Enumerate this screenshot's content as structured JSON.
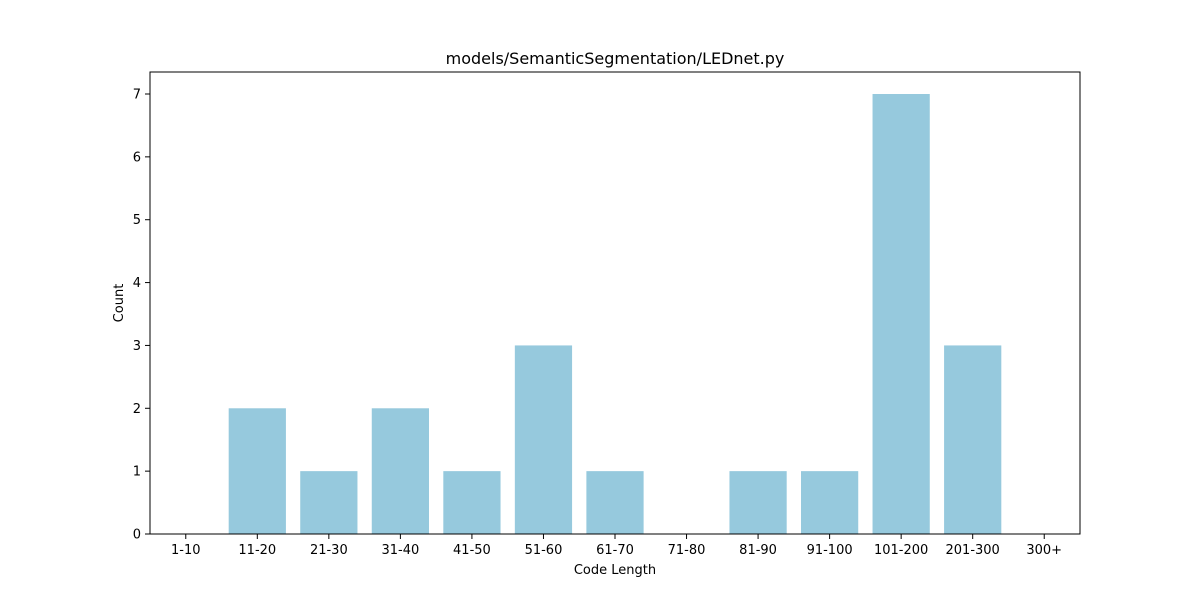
{
  "chart_data": {
    "type": "bar",
    "title": "models/SemanticSegmentation/LEDnet.py",
    "xlabel": "Code Length",
    "ylabel": "Count",
    "categories": [
      "1-10",
      "11-20",
      "21-30",
      "31-40",
      "41-50",
      "51-60",
      "61-70",
      "71-80",
      "81-90",
      "91-100",
      "101-200",
      "201-300",
      "300+"
    ],
    "values": [
      0,
      2,
      1,
      2,
      1,
      3,
      1,
      0,
      1,
      1,
      7,
      3,
      0
    ],
    "ylim": [
      0,
      7.35
    ],
    "yticks": [
      0,
      1,
      2,
      3,
      4,
      5,
      6,
      7
    ],
    "bar_color": "#96c9dd",
    "grid": false,
    "legend": "none"
  }
}
